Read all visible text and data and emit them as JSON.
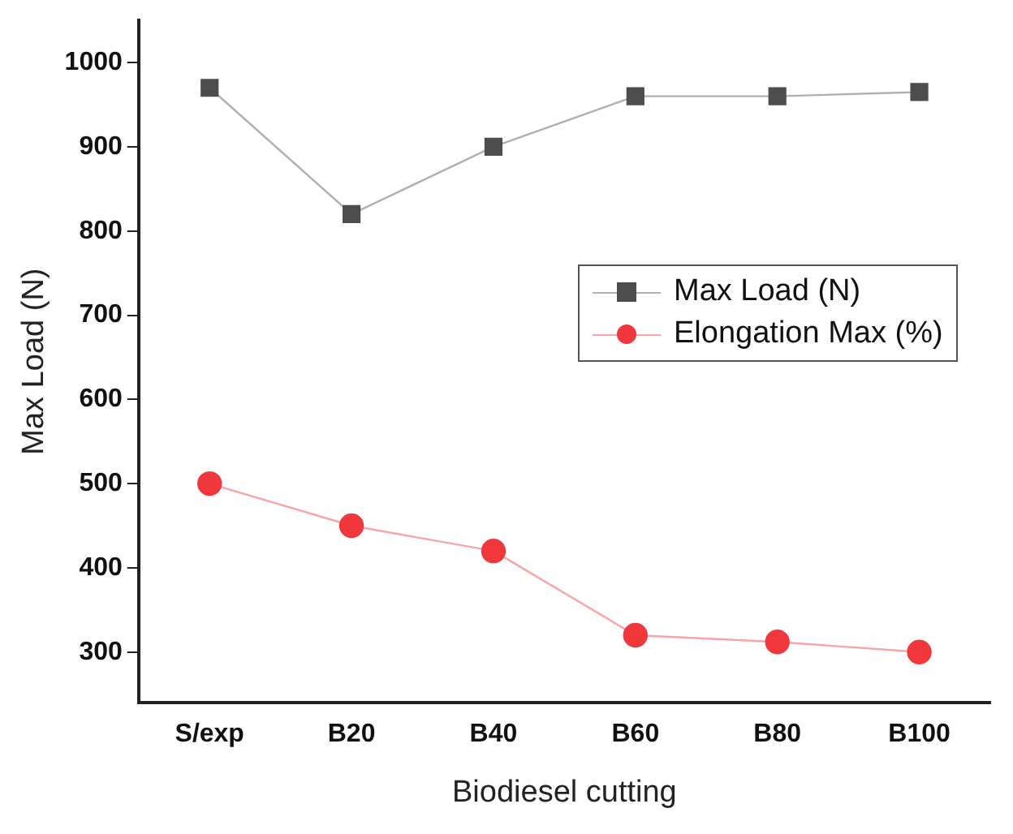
{
  "chart_data": {
    "type": "line",
    "xlabel": "Biodiesel cutting",
    "ylabel": "Max Load (N)",
    "categories": [
      "S/exp",
      "B20",
      "B40",
      "B60",
      "B80",
      "B100"
    ],
    "ylim": [
      240,
      1050
    ],
    "yticks": [
      300,
      400,
      500,
      600,
      700,
      800,
      900,
      1000
    ],
    "grid": false,
    "legend": "right",
    "series": [
      {
        "name": "Max Load (N)",
        "color": "#4d4d4d",
        "marker": "square",
        "values": [
          970,
          820,
          900,
          960,
          960,
          965
        ]
      },
      {
        "name": "Elongation Max (%)",
        "color": "#f0383c",
        "marker": "circle",
        "values": [
          500,
          450,
          420,
          320,
          312,
          300
        ]
      }
    ]
  }
}
